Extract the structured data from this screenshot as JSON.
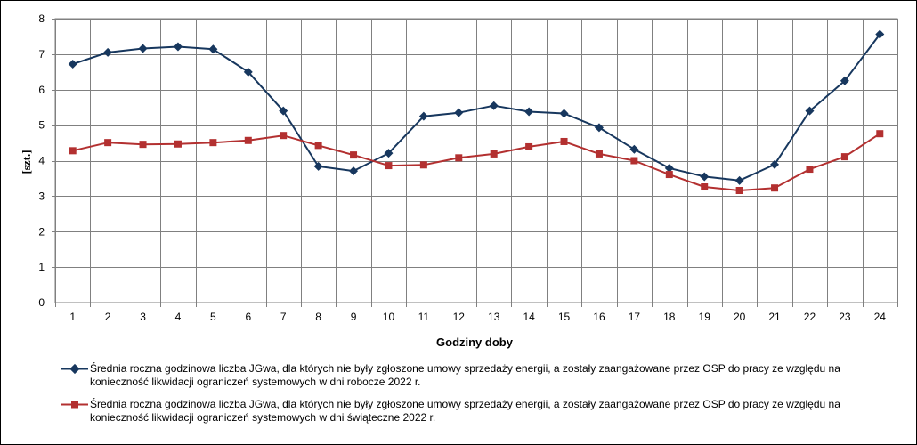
{
  "chart_data": {
    "type": "line",
    "xlabel": "Godziny doby",
    "ylabel": "[szt.]",
    "ylim": [
      0,
      8
    ],
    "y_ticks": [
      0,
      1,
      2,
      3,
      4,
      5,
      6,
      7,
      8
    ],
    "categories": [
      "1",
      "2",
      "3",
      "4",
      "5",
      "6",
      "7",
      "8",
      "9",
      "10",
      "11",
      "12",
      "13",
      "14",
      "15",
      "16",
      "17",
      "18",
      "19",
      "20",
      "21",
      "22",
      "23",
      "24"
    ],
    "grid": true,
    "legend_position": "bottom",
    "series": [
      {
        "name": "Średnia roczna godzinowa liczba JGwa, dla których nie były zgłoszone umowy sprzedaży energii, a zostały zaangażowane przez OSP do pracy ze względu na konieczność likwidacji ograniczeń systemowych w dni robocze 2022 r.",
        "color": "#17375e",
        "marker": "diamond",
        "values": [
          6.72,
          7.05,
          7.16,
          7.21,
          7.14,
          6.5,
          5.4,
          3.84,
          3.71,
          4.21,
          5.25,
          5.35,
          5.55,
          5.38,
          5.33,
          4.93,
          4.32,
          3.79,
          3.55,
          3.44,
          3.89,
          5.4,
          6.25,
          7.56
        ]
      },
      {
        "name": "Średnia roczna godzinowa liczba JGwa, dla których nie były zgłoszone umowy sprzedaży energii, a zostały zaangażowane przez OSP do pracy ze względu na konieczność likwidacji ograniczeń systemowych w dni świąteczne 2022 r.",
        "color": "#b33030",
        "marker": "square",
        "values": [
          4.28,
          4.51,
          4.46,
          4.47,
          4.51,
          4.57,
          4.71,
          4.43,
          4.16,
          3.86,
          3.88,
          4.08,
          4.19,
          4.39,
          4.54,
          4.19,
          4.0,
          3.61,
          3.26,
          3.16,
          3.23,
          3.76,
          4.11,
          4.76
        ]
      }
    ]
  }
}
